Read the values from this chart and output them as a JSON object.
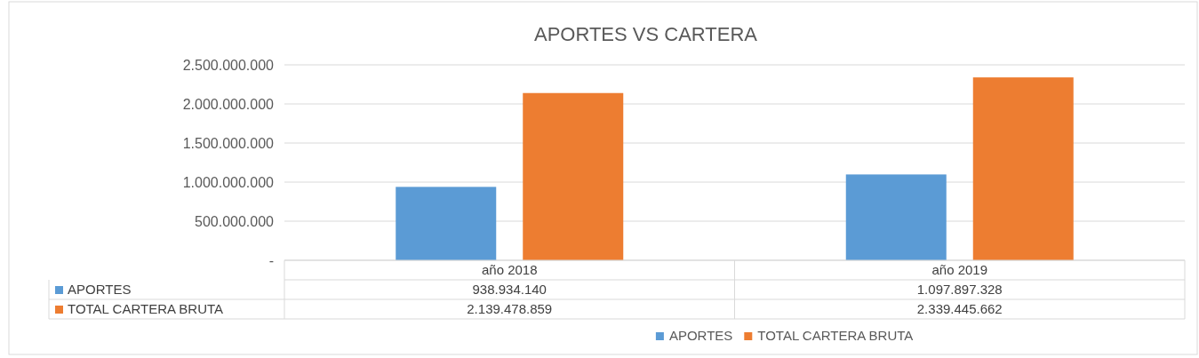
{
  "chart_data": {
    "type": "bar",
    "title": "APORTES VS CARTERA",
    "categories": [
      "año 2018",
      "año 2019"
    ],
    "series": [
      {
        "name": "APORTES",
        "color": "#5b9bd5",
        "values": [
          938934140,
          1097897328
        ],
        "value_labels": [
          "938.934.140",
          "1.097.897.328"
        ]
      },
      {
        "name": "TOTAL CARTERA BRUTA",
        "color": "#ed7d31",
        "values": [
          2139478859,
          2339445662
        ],
        "value_labels": [
          "2.139.478.859",
          "2.339.445.662"
        ]
      }
    ],
    "ylim": [
      0,
      2500000000
    ],
    "yticks": [
      {
        "value": 0,
        "label": "-"
      },
      {
        "value": 500000000,
        "label": "500.000.000"
      },
      {
        "value": 1000000000,
        "label": "1.000.000.000"
      },
      {
        "value": 1500000000,
        "label": "1.500.000.000"
      },
      {
        "value": 2000000000,
        "label": "2.000.000.000"
      },
      {
        "value": 2500000000,
        "label": "2.500.000.000"
      }
    ],
    "grid": "y",
    "legend": "bottom"
  }
}
